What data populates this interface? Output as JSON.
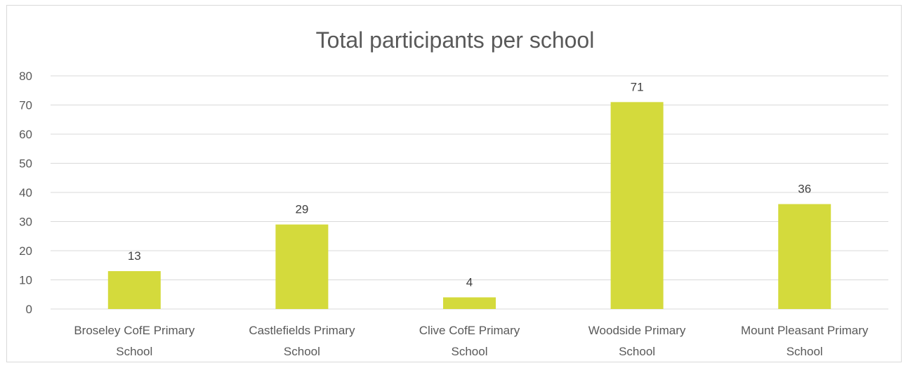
{
  "chart_data": {
    "type": "bar",
    "title": "Total participants per school",
    "categories": [
      [
        "Broseley CofE Primary",
        "School"
      ],
      [
        "Castlefields Primary",
        "School"
      ],
      [
        "Clive CofE Primary",
        "School"
      ],
      [
        "Woodside Primary",
        "School"
      ],
      [
        "Mount Pleasant Primary",
        "School"
      ]
    ],
    "values": [
      13,
      29,
      4,
      71,
      36
    ],
    "data_labels": [
      "13",
      "29",
      "4",
      "71",
      "36"
    ],
    "ylim": [
      0,
      80
    ],
    "yticks": [
      0,
      10,
      20,
      30,
      40,
      50,
      60,
      70,
      80
    ],
    "grid": true,
    "legend": "none",
    "bar_color": "#d4da3c",
    "gridline_color": "#d9d9d9",
    "text_color": "#595959"
  }
}
